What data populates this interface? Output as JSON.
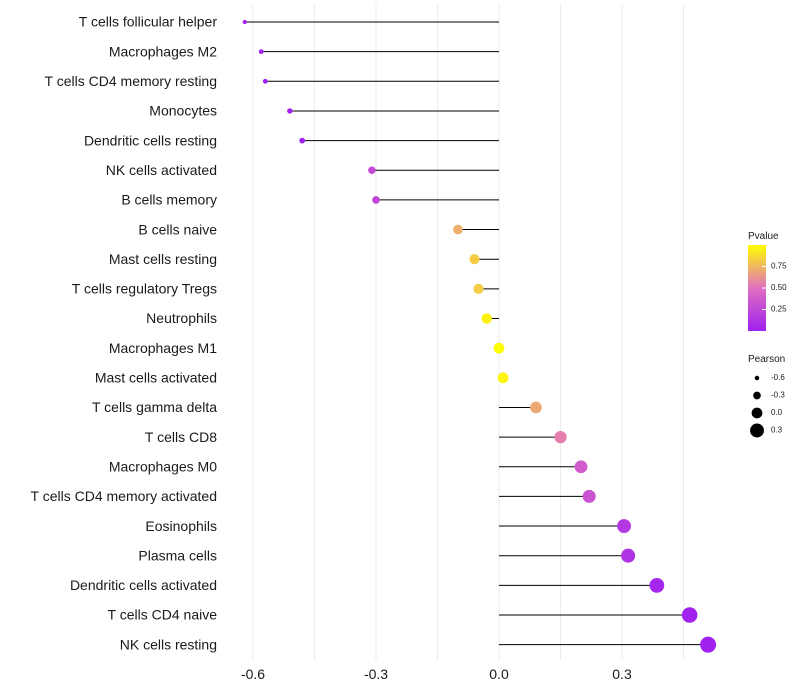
{
  "chart_data": {
    "type": "lollipop",
    "xlabel": "",
    "ylabel": "",
    "xlim": [
      -0.62,
      0.53
    ],
    "xticks": [
      -0.6,
      -0.3,
      0.0,
      0.3
    ],
    "xtick_labels": [
      "-0.6",
      "-0.3",
      "0.0",
      "0.3"
    ],
    "grid": true,
    "categories": [
      "T cells follicular helper",
      "Macrophages M2",
      "T cells CD4 memory resting",
      "Monocytes",
      "Dendritic cells resting",
      "NK cells activated",
      "B cells memory",
      "B cells naive",
      "Mast cells resting",
      "T cells regulatory  Tregs ",
      "Neutrophils",
      "Macrophages M1",
      "Mast cells activated",
      "T cells gamma delta",
      "T cells CD8",
      "Macrophages M0",
      "T cells CD4 memory activated",
      "Eosinophils",
      "Plasma cells",
      "Dendritic cells activated",
      "T cells CD4 naive",
      "NK cells resting"
    ],
    "pearson": [
      -0.62,
      -0.58,
      -0.57,
      -0.51,
      -0.48,
      -0.31,
      -0.3,
      -0.1,
      -0.06,
      -0.05,
      -0.03,
      0.0,
      0.01,
      0.09,
      0.15,
      0.2,
      0.22,
      0.305,
      0.315,
      0.385,
      0.465,
      0.51
    ],
    "pvalue": [
      0.01,
      0.01,
      0.01,
      0.01,
      0.01,
      0.26,
      0.24,
      0.72,
      0.82,
      0.82,
      0.95,
      0.99,
      0.96,
      0.7,
      0.55,
      0.38,
      0.32,
      0.15,
      0.12,
      0.04,
      0.01,
      0.01
    ],
    "legend_pvalue": {
      "title": "Pvalue",
      "ticks": [
        0.75,
        0.5,
        0.25
      ],
      "tick_labels": [
        "0.75",
        "0.50",
        "0.25"
      ],
      "colors": [
        "#ffff00",
        "#e070c0",
        "#a020f0"
      ]
    },
    "legend_pearson": {
      "title": "Pearson",
      "values": [
        -0.6,
        -0.3,
        0.0,
        0.3
      ],
      "labels": [
        "-0.6",
        "-0.3",
        "0.0",
        "0.3"
      ]
    }
  }
}
